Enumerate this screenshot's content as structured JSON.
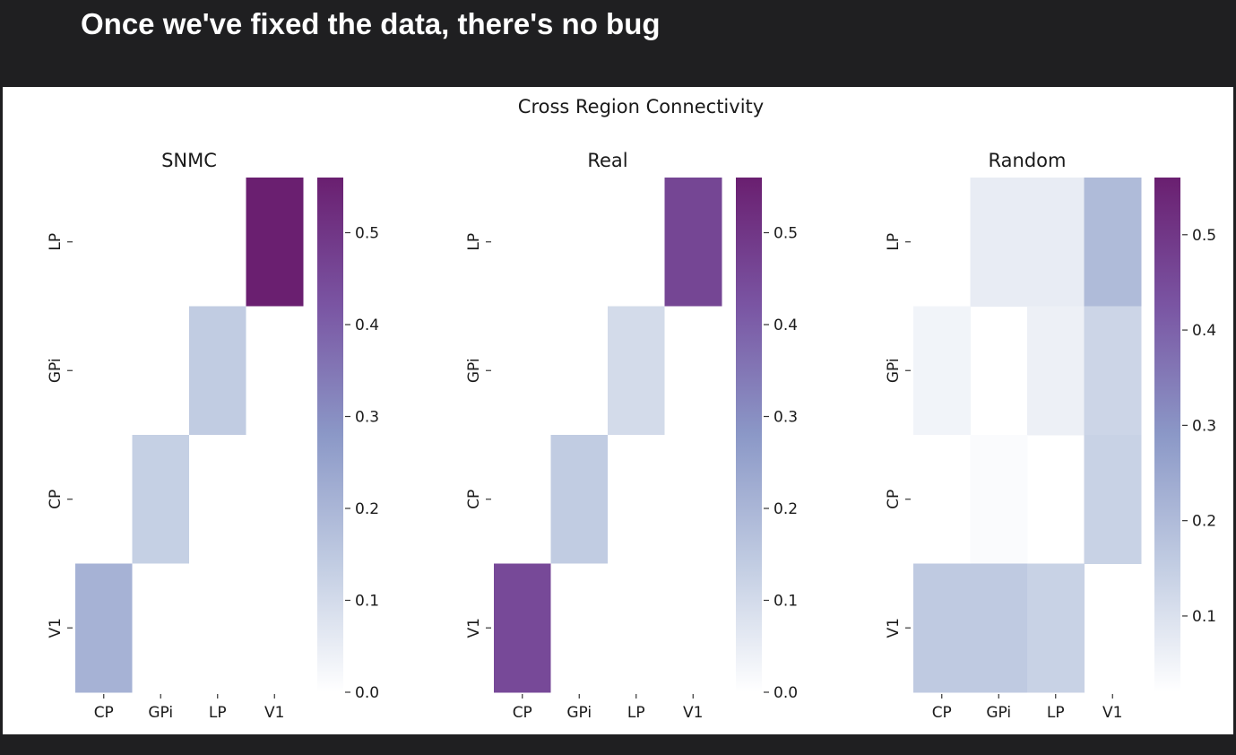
{
  "slide": {
    "title": "Once we've fixed the data, there's no bug"
  },
  "figure": {
    "suptitle": "Cross Region Connectivity"
  },
  "colors": {
    "slide_background": "#1f1f21",
    "figure_background": "#ffffff",
    "colormap": [
      "#ffffff",
      "#c1cce2",
      "#8b98c7",
      "#7a55a3",
      "#6a1f70"
    ]
  },
  "chart_data": [
    {
      "type": "heatmap",
      "title": "SNMC",
      "x_categories": [
        "CP",
        "GPi",
        "LP",
        "V1"
      ],
      "y_categories": [
        "LP",
        "GPi",
        "CP",
        "V1"
      ],
      "values": [
        [
          0.0,
          0.0,
          0.0,
          0.56
        ],
        [
          0.0,
          0.0,
          0.14,
          0.0
        ],
        [
          0.0,
          0.13,
          0.0,
          0.0
        ],
        [
          0.21,
          0.0,
          0.0,
          0.0
        ]
      ],
      "colorbar": {
        "min": 0.0,
        "max": 0.56,
        "ticks": [
          0.0,
          0.1,
          0.2,
          0.3,
          0.4,
          0.5
        ],
        "tick_labels": [
          "0.0",
          "0.1",
          "0.2",
          "0.3",
          "0.4",
          "0.5"
        ]
      }
    },
    {
      "type": "heatmap",
      "title": "Real",
      "x_categories": [
        "CP",
        "GPi",
        "LP",
        "V1"
      ],
      "y_categories": [
        "LP",
        "GPi",
        "CP",
        "V1"
      ],
      "values": [
        [
          0.0,
          0.0,
          0.0,
          0.46
        ],
        [
          0.0,
          0.0,
          0.1,
          0.0
        ],
        [
          0.0,
          0.14,
          0.0,
          0.0
        ],
        [
          0.45,
          0.0,
          0.0,
          0.0
        ]
      ],
      "colorbar": {
        "min": 0.0,
        "max": 0.56,
        "ticks": [
          0.0,
          0.1,
          0.2,
          0.3,
          0.4,
          0.5
        ],
        "tick_labels": [
          "0.0",
          "0.1",
          "0.2",
          "0.3",
          "0.4",
          "0.5"
        ]
      }
    },
    {
      "type": "heatmap",
      "title": "Random",
      "x_categories": [
        "CP",
        "GPi",
        "LP",
        "V1"
      ],
      "y_categories": [
        "LP",
        "GPi",
        "CP",
        "V1"
      ],
      "values": [
        [
          null,
          0.07,
          0.07,
          0.2
        ],
        [
          0.05,
          null,
          0.06,
          0.13
        ],
        [
          0.02,
          0.03,
          null,
          0.14
        ],
        [
          0.16,
          0.16,
          0.14,
          null
        ]
      ],
      "colorbar": {
        "min": 0.02,
        "max": 0.56,
        "ticks": [
          0.1,
          0.2,
          0.3,
          0.4,
          0.5
        ],
        "tick_labels": [
          "0.1",
          "0.2",
          "0.3",
          "0.4",
          "0.5"
        ]
      }
    }
  ]
}
